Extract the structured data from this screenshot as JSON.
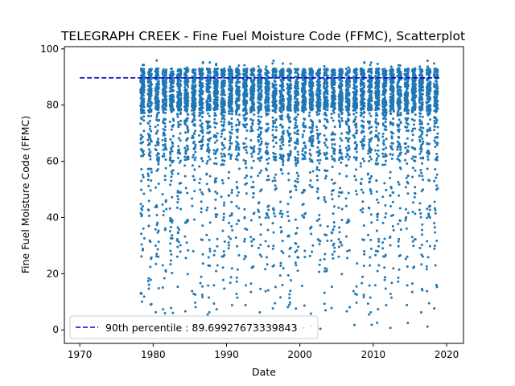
{
  "chart_data": {
    "type": "scatter",
    "title": "TELEGRAPH CREEK - Fine Fuel Moisture Code (FFMC), Scatterplot",
    "xlabel": "Date",
    "ylabel": "Fine Fuel Moisture Code (FFMC)",
    "xlim": [
      1967.9,
      2022.3
    ],
    "ylim": [
      -4.8,
      100.8
    ],
    "xticks": [
      1970,
      1980,
      1990,
      2000,
      2010,
      2020
    ],
    "yticks": [
      0,
      20,
      40,
      60,
      80,
      100
    ],
    "grid": false,
    "legend_position": "lower-left",
    "point_color": "#1f77b4",
    "reference_line": {
      "label": "90th percentile : 89.69927673339843",
      "value": 89.69927673339843,
      "x_range": [
        1970,
        2019
      ],
      "color": "#0000cd",
      "style": "dashed"
    },
    "series": [
      {
        "season_years": [
          1978,
          1979,
          1980,
          1981,
          1982,
          1983,
          1984,
          1985,
          1986,
          1987,
          1988,
          1989,
          1990,
          1991,
          1992,
          1993,
          1994,
          1995,
          1996,
          1997,
          1998,
          1999,
          2000,
          2001,
          2002,
          2003,
          2004,
          2005,
          2006,
          2007,
          2008,
          2009,
          2010,
          2011,
          2012,
          2013,
          2014,
          2015,
          2016,
          2017,
          2018
        ],
        "season_start_fraction": 0.28,
        "season_end_fraction": 0.8,
        "typical_range": [
          72,
          93
        ],
        "observed_min": 0,
        "observed_max": 96
      }
    ]
  }
}
